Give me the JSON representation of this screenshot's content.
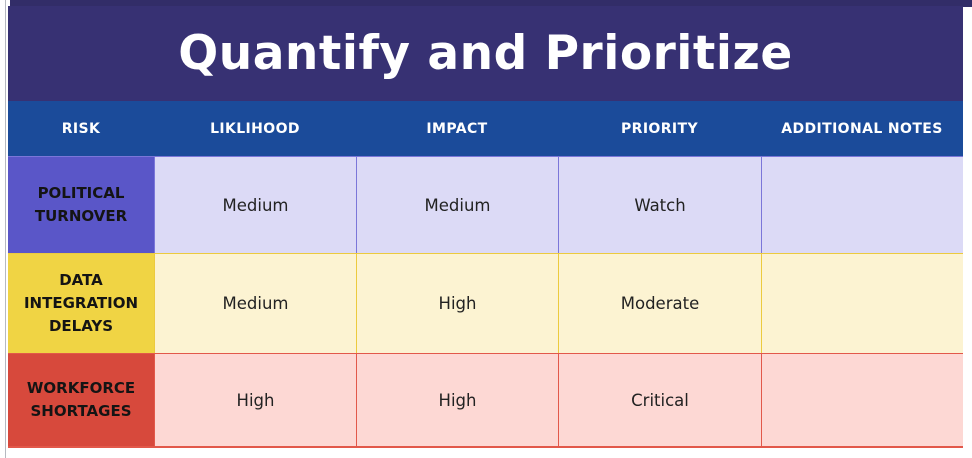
{
  "slide": {
    "title": "Quantify and Prioritize"
  },
  "table": {
    "type": "table",
    "columns": [
      "RISK",
      "LIKLIHOOD",
      "IMPACT",
      "PRIORITY",
      "ADDITIONAL NOTES"
    ],
    "rows": [
      {
        "risk": "POLITICAL TURNOVER",
        "liklihood": "Medium",
        "impact": "Medium",
        "priority": "Watch",
        "additional_notes": ""
      },
      {
        "risk": "DATA INTEGRATION DELAYS",
        "liklihood": "Medium",
        "impact": "High",
        "priority": "Moderate",
        "additional_notes": ""
      },
      {
        "risk": "WORKFORCE SHORTAGES",
        "liklihood": "High",
        "impact": "High",
        "priority": "Critical",
        "additional_notes": ""
      }
    ]
  },
  "colors": {
    "title_band": "#373173",
    "top_strip": "#322d68",
    "header_bg": "#1b4b9a",
    "header_text": "#ffffff",
    "page_edge_line": "#b6b9c0",
    "rows": [
      {
        "accent": "#5a56c8",
        "tint": "#dcdaf6",
        "border": "#7b76d9"
      },
      {
        "accent": "#f0d444",
        "tint": "#fcf3d2",
        "border": "#ecca3e"
      },
      {
        "accent": "#d7493c",
        "tint": "#fdd8d4",
        "border": "#e2584a"
      }
    ]
  }
}
